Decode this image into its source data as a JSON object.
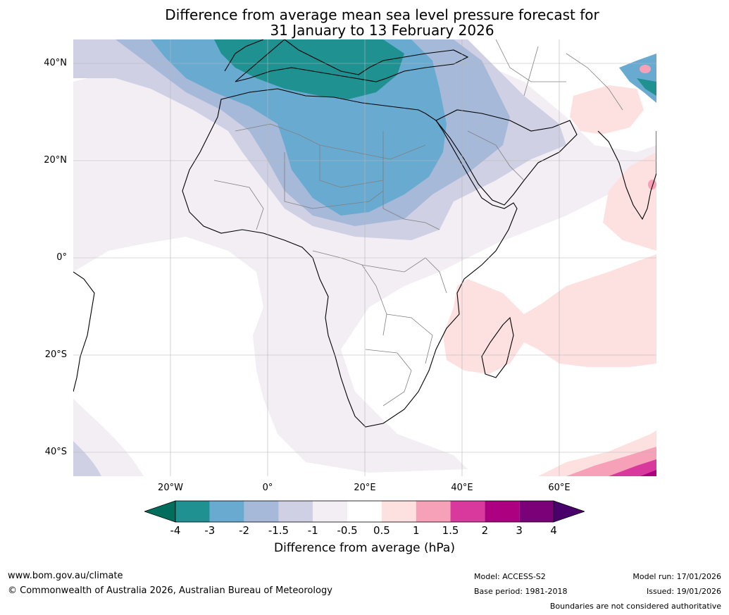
{
  "title": {
    "line1": "Difference from average mean sea level pressure forecast for",
    "line2": "31 January to 13 February 2026"
  },
  "map": {
    "lat_labels": [
      "40°N",
      "20°N",
      "0°",
      "20°S",
      "40°S"
    ],
    "lon_labels": [
      "20°W",
      "0°",
      "20°E",
      "40°E",
      "60°E"
    ],
    "grid": true
  },
  "colorbar": {
    "ticks": [
      "-4",
      "-3",
      "-2",
      "-1.5",
      "-1",
      "-0.5",
      "0.5",
      "1",
      "1.5",
      "2",
      "3",
      "4"
    ],
    "colors": [
      "#006d5d",
      "#1e9190",
      "#69aad1",
      "#a6b9d8",
      "#cfd0e4",
      "#f3eef4",
      "#ffffff",
      "#fde0e0",
      "#f7a1b8",
      "#d9399c",
      "#ad0081",
      "#7a0177",
      "#4a006a"
    ],
    "label": "Difference from average (hPa)"
  },
  "footer": {
    "website": "www.bom.gov.au/climate",
    "copyright": "© Commonwealth of Australia 2026, Australian Bureau of Meteorology",
    "model": "Model: ACCESS-S2",
    "base_period": "Base period: 1981-2018",
    "model_run": "Model run: 17/01/2026",
    "issued": "Issued: 19/01/2026",
    "disclaimer": "Boundaries are not considered authoritative"
  }
}
